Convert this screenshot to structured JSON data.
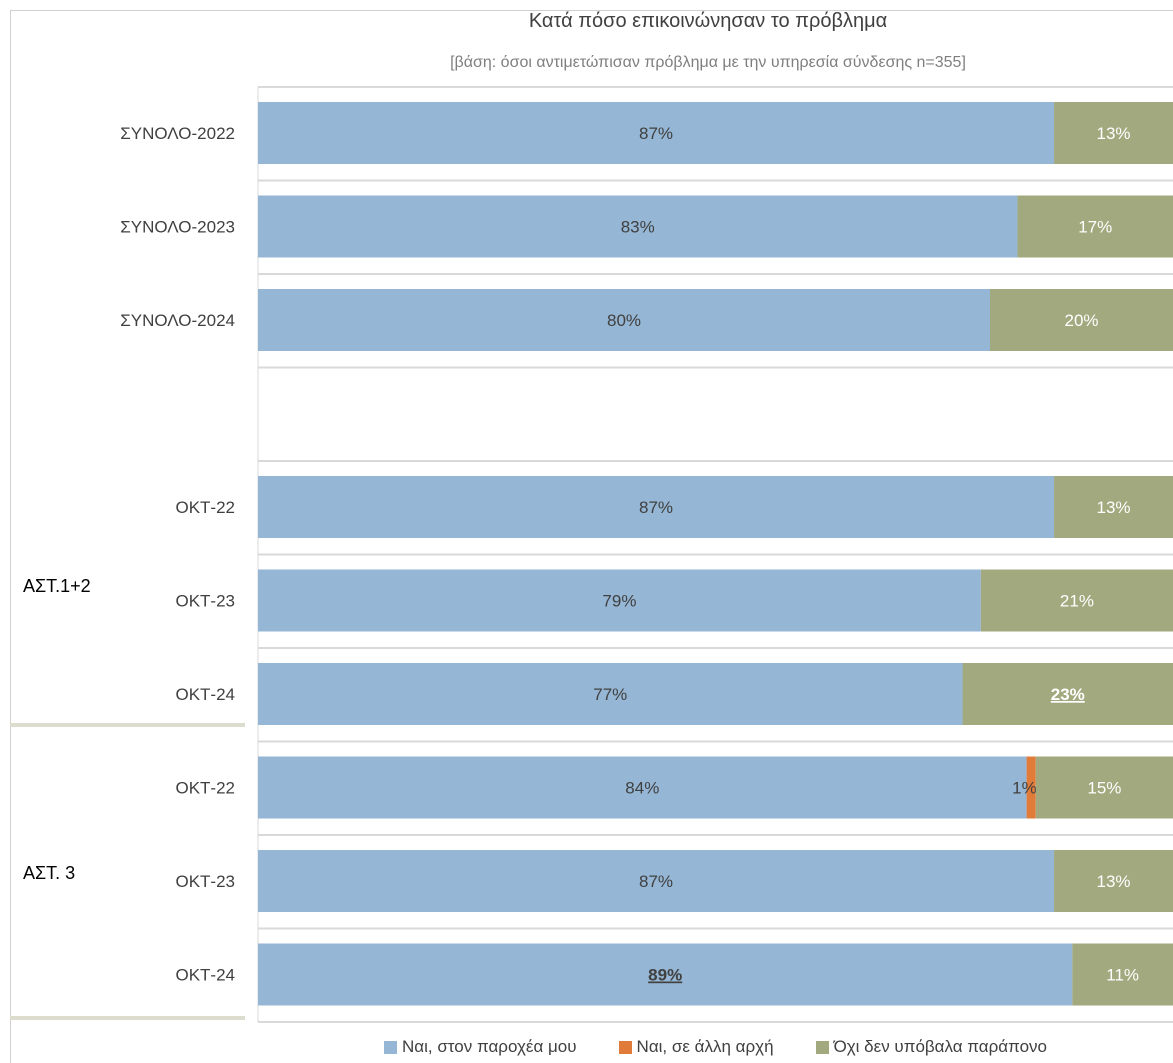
{
  "chart_data": {
    "type": "bar",
    "orientation": "horizontal",
    "stacked": true,
    "title": "Κατά πόσο επικοινώνησαν το πρόβλημα",
    "subtitle": "[βάση: όσοι αντιμετώπισαν πρόβλημα με την υπηρεσία σύνδεσης n=355]",
    "categories": [
      "ΣΥΝΟΛΟ-2022",
      "ΣΥΝΟΛΟ-2023",
      "ΣΥΝΟΛΟ-2024",
      "",
      "ΟΚΤ-22",
      "ΟΚΤ-23",
      "ΟΚΤ-24",
      "ΟΚΤ-22",
      "ΟΚΤ-23",
      "ΟΚΤ-24"
    ],
    "groups": [
      {
        "label": "ΑΣΤ.1+2",
        "categories": [
          4,
          5,
          6
        ]
      },
      {
        "label": "ΑΣΤ. 3",
        "categories": [
          7,
          8,
          9
        ]
      }
    ],
    "series": [
      {
        "name": "Ναι, στον παροχέα μου",
        "color": "#95b6d4",
        "values": [
          87,
          83,
          80,
          null,
          87,
          79,
          77,
          84,
          87,
          89
        ],
        "labels": [
          "87%",
          "83%",
          "80%",
          "",
          "87%",
          "79%",
          "77%",
          "84%",
          "87%",
          "89%"
        ]
      },
      {
        "name": "Ναι, σε άλλη αρχή",
        "color": "#e07b39",
        "values": [
          0,
          0,
          0,
          null,
          0,
          0,
          0,
          1,
          0,
          0
        ],
        "labels": [
          "",
          "",
          "",
          "",
          "",
          "",
          "",
          "1%",
          "",
          ""
        ]
      },
      {
        "name": "Όχι δεν υπόβαλα παράπονο",
        "color": "#a2a97e",
        "values": [
          13,
          17,
          20,
          null,
          13,
          21,
          23,
          15,
          13,
          11
        ],
        "labels": [
          "13%",
          "17%",
          "20%",
          "",
          "13%",
          "21%",
          "23%",
          "15%",
          "13%",
          "11%"
        ]
      }
    ],
    "highlighted": [
      {
        "series": 2,
        "category": 6
      },
      {
        "series": 0,
        "category": 9
      }
    ],
    "xlim": [
      0,
      100
    ],
    "legend_position": "bottom",
    "grid": true
  }
}
